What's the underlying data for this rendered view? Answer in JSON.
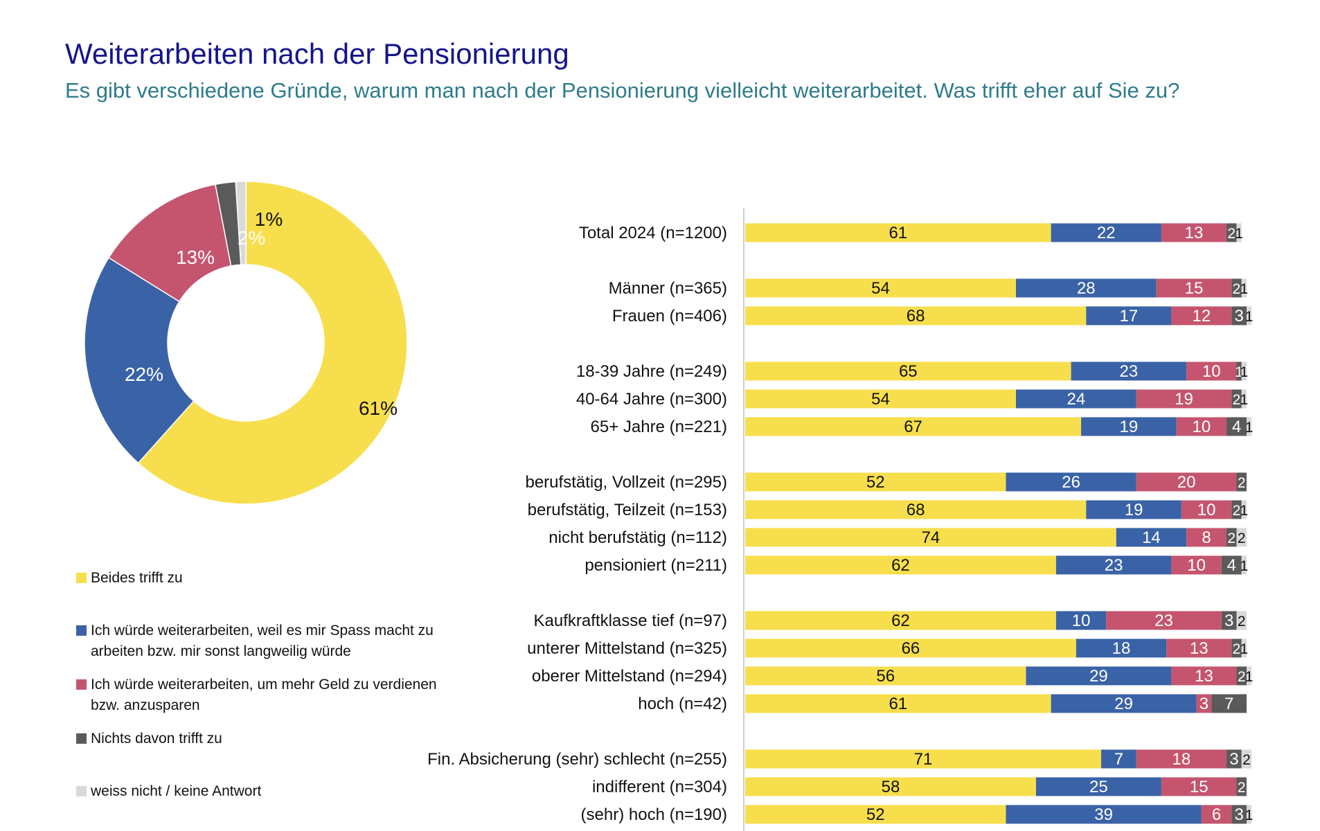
{
  "header": {
    "title": "Weiterarbeiten nach der Pensionierung",
    "subtitle": "Es gibt verschiedene Gründe, warum man nach der Pensionierung vielleicht weiterarbeitet. Was trifft eher auf Sie zu?"
  },
  "colors": {
    "title": "#14148c",
    "subtitle": "#2e7b8c",
    "beides": "#f7de4c",
    "spass": "#3a62a6",
    "geld": "#c5556f",
    "nichts": "#5a5a5a",
    "weiss": "#d9d9d9"
  },
  "chart_data": [
    {
      "type": "pie",
      "variant": "donut",
      "labels": [
        "Beides trifft zu",
        "Ich würde weiterarbeiten, weil es mir Spass macht zu arbeiten bzw. mir sonst langweilig würde",
        "Ich würde weiterarbeiten, um mehr Geld zu verdienen bzw. anzusparen",
        "Nichts davon trifft zu",
        "weiss nicht / keine Antwort"
      ],
      "values": [
        61,
        22,
        13,
        2,
        1
      ],
      "value_labels": [
        "61%",
        "22%",
        "13%",
        "2%",
        "1%"
      ],
      "colors": [
        "#f7de4c",
        "#3a62a6",
        "#c5556f",
        "#5a5a5a",
        "#d9d9d9"
      ],
      "legend": "bottom-left"
    },
    {
      "type": "bar",
      "orientation": "horizontal",
      "stacked": true,
      "categories": [
        "Total 2024 (n=1200)",
        "Männer (n=365)",
        "Frauen (n=406)",
        "18-39 Jahre (n=249)",
        "40-64 Jahre (n=300)",
        "65+ Jahre (n=221)",
        "berufstätig, Vollzeit (n=295)",
        "berufstätig, Teilzeit (n=153)",
        "nicht berufstätig (n=112)",
        "pensioniert (n=211)",
        "Kaufkraftklasse tief (n=97)",
        "unterer Mittelstand (n=325)",
        "oberer Mittelstand (n=294)",
        "hoch (n=42)",
        "Fin. Absicherung (sehr) schlecht (n=255)",
        "indifferent (n=304)",
        "(sehr) hoch (n=190)"
      ],
      "groups": [
        [
          0
        ],
        [
          1,
          2
        ],
        [
          3,
          4,
          5
        ],
        [
          6,
          7,
          8,
          9
        ],
        [
          10,
          11,
          12,
          13
        ],
        [
          14,
          15,
          16
        ]
      ],
      "series": [
        {
          "name": "Beides trifft zu",
          "color": "#f7de4c",
          "label_color": "#111111",
          "values": [
            61,
            54,
            68,
            65,
            54,
            67,
            52,
            68,
            74,
            62,
            62,
            66,
            56,
            61,
            71,
            58,
            52
          ]
        },
        {
          "name": "Ich würde weiterarbeiten, weil es mir Spass macht zu arbeiten bzw. mir sonst langweilig würde",
          "color": "#3a62a6",
          "label_color": "#ffffff",
          "values": [
            22,
            28,
            17,
            23,
            24,
            19,
            26,
            19,
            14,
            23,
            10,
            18,
            29,
            29,
            7,
            25,
            39
          ]
        },
        {
          "name": "Ich würde weiterarbeiten, um mehr Geld zu verdienen bzw. anzusparen",
          "color": "#c5556f",
          "label_color": "#ffffff",
          "values": [
            13,
            15,
            12,
            10,
            19,
            10,
            20,
            10,
            8,
            10,
            23,
            13,
            13,
            3,
            18,
            15,
            6
          ]
        },
        {
          "name": "Nichts davon trifft zu",
          "color": "#5a5a5a",
          "label_color": "#ffffff",
          "values": [
            2,
            2,
            3,
            1,
            2,
            4,
            2,
            2,
            2,
            4,
            3,
            2,
            2,
            7,
            3,
            2,
            3
          ]
        },
        {
          "name": "weiss nicht / keine Antwort",
          "color": "#d9d9d9",
          "label_color": "#111111",
          "values": [
            1,
            1,
            1,
            1,
            1,
            1,
            0,
            1,
            2,
            1,
            2,
            1,
            1,
            0,
            2,
            0,
            1
          ]
        }
      ],
      "xlim": [
        0,
        100
      ]
    }
  ]
}
